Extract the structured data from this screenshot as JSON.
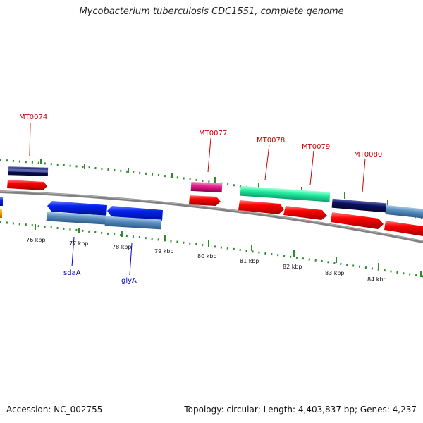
{
  "title": "Mycobacterium tuberculosis CDC1551, complete genome",
  "footer": {
    "accession": "Accession: NC_002755",
    "summary": "Topology: circular; Length: 4,403,837 bp; Genes: 4,237"
  },
  "ruler_labels": [
    "76 kbp",
    "77 kbp",
    "78 kbp",
    "79 kbp",
    "80 kbp",
    "81 kbp",
    "82 kbp",
    "83 kbp",
    "84 kbp"
  ],
  "locus_labels": [
    "MT0074",
    "MT0077",
    "MT0078",
    "MT0079",
    "MT0080"
  ],
  "gene_names": [
    "sdaA",
    "glyA"
  ],
  "colors": {
    "backbone": "#808080",
    "tick": "#2e8b2e",
    "cds_red": "#ff0000",
    "cds_blue": "#0022ee",
    "steel_blue": "#5b8fc0",
    "navy": "#0a1060",
    "magenta": "#e0208a",
    "spring_green": "#22f0a0",
    "orange": "#ffa500",
    "locus_label": "#cc0000",
    "gene_label": "#0000cc"
  }
}
